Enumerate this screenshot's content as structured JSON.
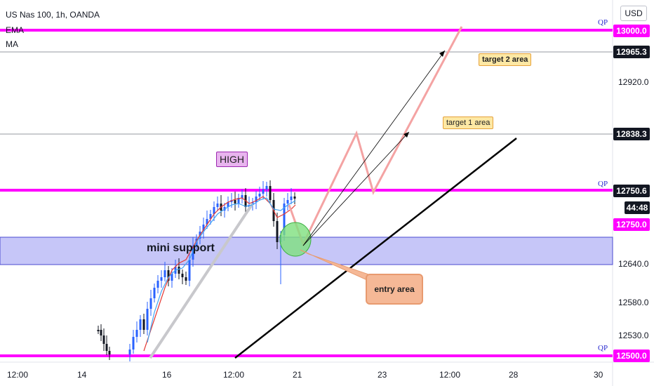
{
  "header": {
    "symbol_line": "US Nas 100, 1h, OANDA",
    "indicator_1": "EMA",
    "indicator_2": "MA"
  },
  "currency_button": "USD",
  "price_tags": [
    {
      "label": "13000.0",
      "style": "magenta"
    },
    {
      "label": "12965.3",
      "style": "black"
    },
    {
      "label": "12838.3",
      "style": "black"
    },
    {
      "label": "12750.6",
      "style": "black"
    },
    {
      "label": "44:48",
      "style": "black"
    },
    {
      "label": "12750.0",
      "style": "magenta"
    },
    {
      "label": "12500.0",
      "style": "magenta"
    }
  ],
  "qp_labels": [
    "QP",
    "QP",
    "QP"
  ],
  "y_axis_labels": [
    "12920.0",
    "12640.0",
    "12580.0",
    "12530.0"
  ],
  "x_axis_labels": [
    "12:00",
    "14",
    "16",
    "12:00",
    "21",
    "23",
    "12:00",
    "28",
    "30"
  ],
  "annotations": {
    "high": "HIGH",
    "mini_support": "mini support",
    "target_1": "target 1 area",
    "target_2": "target 2 area",
    "entry": "entry area"
  },
  "colors": {
    "magenta": "#ff00ff",
    "support_zone": "#b3b3f5",
    "candle_up": "#2962ff",
    "candle_down": "#131722",
    "ema": "#e53935",
    "ma": "#42a5f5",
    "projection": "#f4a3a3",
    "entry_bubble": "#f5b896",
    "entry_circle": "#7ee07e"
  }
}
